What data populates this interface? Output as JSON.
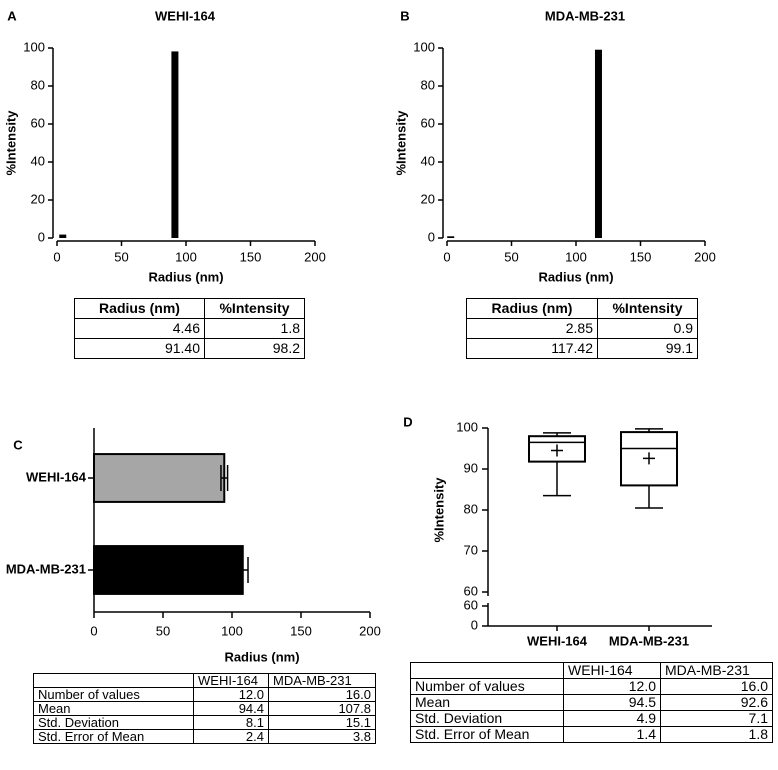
{
  "chart_data": [
    {
      "panel": "A",
      "type": "bar",
      "title": "WEHI-164",
      "x": [
        4.46,
        91.4
      ],
      "values": [
        1.8,
        98.2
      ],
      "color": "#000000",
      "xlim": [
        0,
        200
      ],
      "xticks": [
        0,
        50,
        100,
        150,
        200
      ],
      "ylim": [
        0,
        100
      ],
      "yticks": [
        0,
        20,
        40,
        60,
        80,
        100
      ],
      "xlabel": "Radius (nm)",
      "ylabel": "%Intensity",
      "table": {
        "columns": [
          "Radius (nm)",
          "%Intensity"
        ],
        "rows": [
          [
            "4.46",
            "1.8"
          ],
          [
            "91.40",
            "98.2"
          ]
        ]
      }
    },
    {
      "panel": "B",
      "type": "bar",
      "title": "MDA-MB-231",
      "x": [
        2.85,
        117.42
      ],
      "values": [
        0.9,
        99.1
      ],
      "color": "#000000",
      "xlim": [
        0,
        200
      ],
      "xticks": [
        0,
        50,
        100,
        150,
        200
      ],
      "ylim": [
        0,
        100
      ],
      "yticks": [
        0,
        20,
        40,
        60,
        80,
        100
      ],
      "xlabel": "Radius (nm)",
      "ylabel": "%Intensity",
      "table": {
        "columns": [
          "Radius (nm)",
          "%Intensity"
        ],
        "rows": [
          [
            "2.85",
            "0.9"
          ],
          [
            "117.42",
            "99.1"
          ]
        ]
      }
    },
    {
      "panel": "C",
      "type": "hbar",
      "categories": [
        "WEHI-164",
        "MDA-MB-231"
      ],
      "values": [
        94.4,
        107.8
      ],
      "errors": [
        2.4,
        3.8
      ],
      "colors": [
        "#a6a6a6",
        "#000000"
      ],
      "xlim": [
        0,
        200
      ],
      "xticks": [
        0,
        50,
        100,
        150,
        200
      ],
      "xlabel": "Radius (nm)",
      "table": {
        "columns": [
          "WEHI-164",
          "MDA-MB-231"
        ],
        "rows": [
          [
            "Number of values",
            "12.0",
            "16.0"
          ],
          [
            "Mean",
            "94.4",
            "107.8"
          ],
          [
            "Std. Deviation",
            "8.1",
            "15.1"
          ],
          [
            "Std. Error of Mean",
            "2.4",
            "3.8"
          ]
        ]
      }
    },
    {
      "panel": "D",
      "type": "box",
      "categories": [
        "WEHI-164",
        "MDA-MB-231"
      ],
      "boxes": [
        {
          "min": 83.5,
          "q1": 91.8,
          "median": 96.5,
          "q3": 98,
          "max": 98.8,
          "mean": 94.5
        },
        {
          "min": 80.5,
          "q1": 86,
          "median": 95,
          "q3": 99,
          "max": 99.8,
          "mean": 92.6
        }
      ],
      "ylim": [
        60,
        100
      ],
      "yticks": [
        60,
        70,
        80,
        90,
        100
      ],
      "lower_ylim": [
        0,
        60
      ],
      "lower_yticks": [
        0,
        60
      ],
      "ylabel": "%Intensity",
      "table": {
        "columns": [
          "WEHI-164",
          "MDA-MB-231"
        ],
        "rows": [
          [
            "Number of values",
            "12.0",
            "16.0"
          ],
          [
            "Mean",
            "94.5",
            "92.6"
          ],
          [
            "Std. Deviation",
            "4.9",
            "7.1"
          ],
          [
            "Std. Error of Mean",
            "1.4",
            "1.8"
          ]
        ]
      }
    }
  ]
}
